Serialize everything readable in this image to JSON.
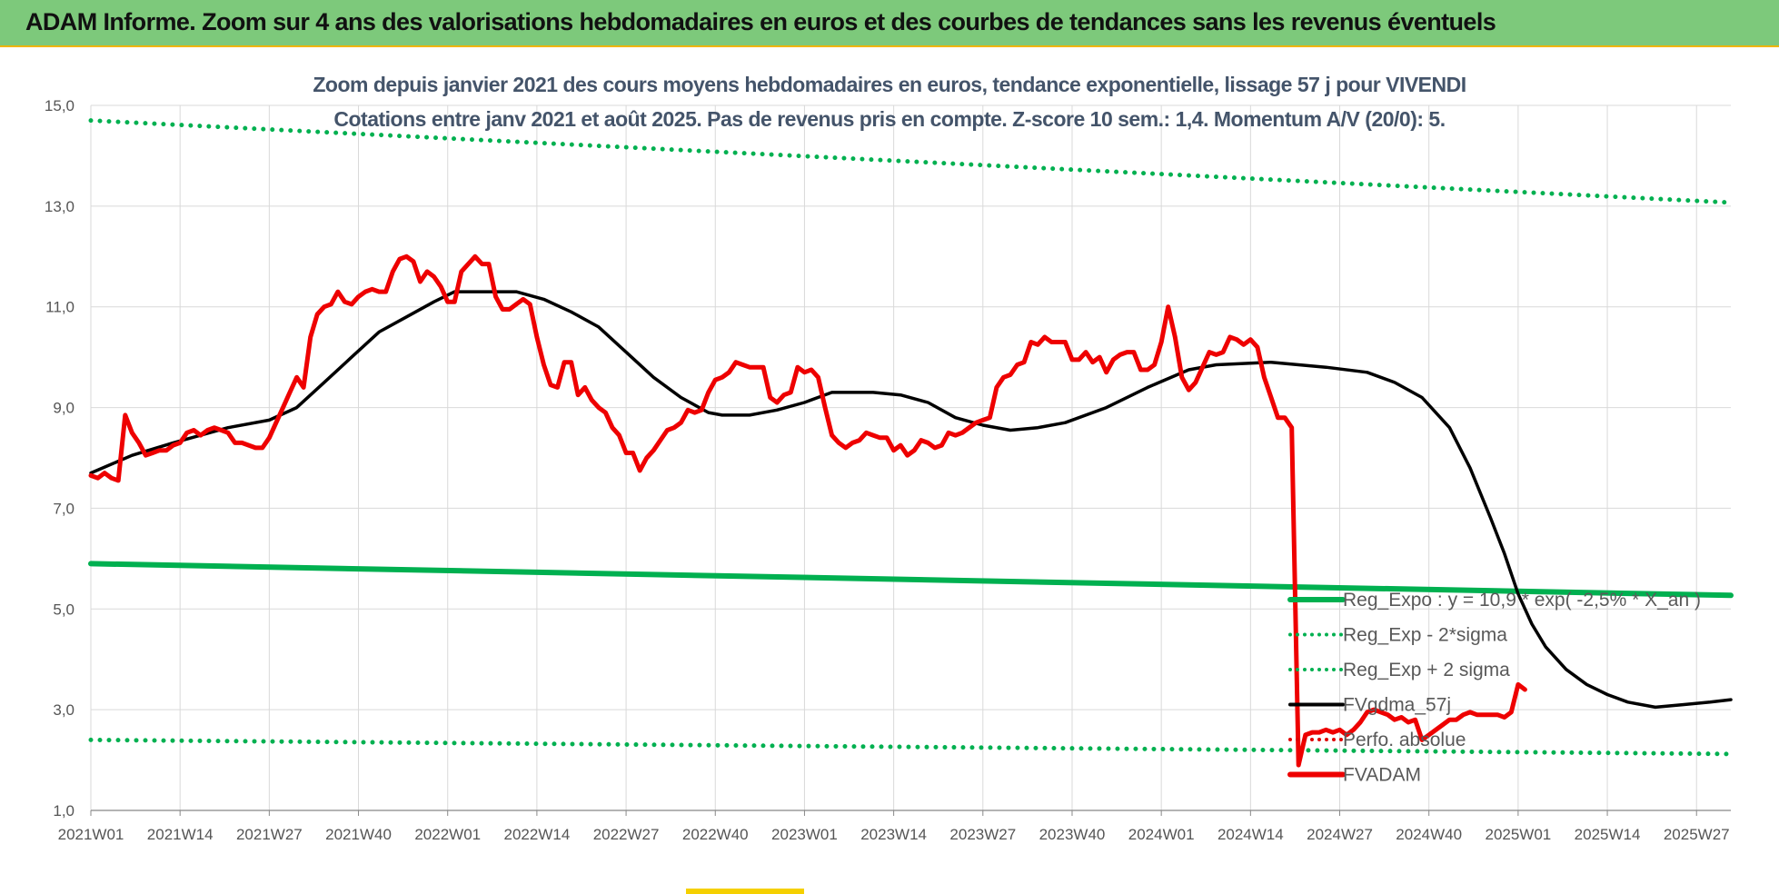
{
  "header": {
    "title": "ADAM Informe. Zoom sur 4 ans des valorisations hebdomadaires en euros et des courbes de tendances sans les revenus éventuels"
  },
  "chart_data": {
    "type": "line",
    "title": "Zoom depuis janvier 2021 des cours moyens hebdomadaires en euros, tendance exponentielle, lissage 57 j pour VIVENDI",
    "subtitle": "Cotations entre janv 2021 et août 2025.  Pas de revenus pris en compte. Z-score 10 sem.: 1,4. Momentum A/V (20/0): 5.",
    "xlabel": "",
    "ylabel": "",
    "ylim": [
      1.0,
      15.0
    ],
    "yticks": [
      "1,0",
      "3,0",
      "5,0",
      "7,0",
      "9,0",
      "11,0",
      "13,0",
      "15,0"
    ],
    "x_range": [
      0,
      239
    ],
    "x_ticks": [
      {
        "label": "2021W01",
        "x": 0
      },
      {
        "label": "2021W14",
        "x": 13
      },
      {
        "label": "2021W27",
        "x": 26
      },
      {
        "label": "2021W40",
        "x": 39
      },
      {
        "label": "2022W01",
        "x": 52
      },
      {
        "label": "2022W14",
        "x": 65
      },
      {
        "label": "2022W27",
        "x": 78
      },
      {
        "label": "2022W40",
        "x": 91
      },
      {
        "label": "2023W01",
        "x": 104
      },
      {
        "label": "2023W14",
        "x": 117
      },
      {
        "label": "2023W27",
        "x": 130
      },
      {
        "label": "2023W40",
        "x": 143
      },
      {
        "label": "2024W01",
        "x": 156
      },
      {
        "label": "2024W14",
        "x": 169
      },
      {
        "label": "2024W27",
        "x": 182
      },
      {
        "label": "2024W40",
        "x": 195
      },
      {
        "label": "2025W01",
        "x": 208
      },
      {
        "label": "2025W14",
        "x": 221
      },
      {
        "label": "2025W27",
        "x": 234
      }
    ],
    "grid": true,
    "legend_position": "bottom-right",
    "series": [
      {
        "name": "Reg_Expo : y = 10,9 * exp( -2,5% * X_an )",
        "color": "#00b050",
        "style": "solid",
        "points": [
          [
            0,
            5.9
          ],
          [
            239,
            5.27
          ]
        ]
      },
      {
        "name": "Reg_Exp - 2*sigma",
        "color": "#00b050",
        "style": "dotted",
        "points": [
          [
            0,
            2.4
          ],
          [
            239,
            2.12
          ]
        ]
      },
      {
        "name": "Reg_Exp + 2 sigma",
        "color": "#00b050",
        "style": "dotted",
        "points": [
          [
            0,
            14.7
          ],
          [
            239,
            13.07
          ]
        ]
      },
      {
        "name": "FVgdma_57j",
        "color": "#000000",
        "style": "solid",
        "points": [
          [
            0,
            7.7
          ],
          [
            6,
            8.05
          ],
          [
            12,
            8.3
          ],
          [
            20,
            8.6
          ],
          [
            26,
            8.75
          ],
          [
            30,
            9.0
          ],
          [
            34,
            9.5
          ],
          [
            38,
            10.0
          ],
          [
            42,
            10.5
          ],
          [
            46,
            10.8
          ],
          [
            50,
            11.1
          ],
          [
            53,
            11.3
          ],
          [
            58,
            11.3
          ],
          [
            62,
            11.3
          ],
          [
            66,
            11.15
          ],
          [
            70,
            10.9
          ],
          [
            74,
            10.6
          ],
          [
            78,
            10.1
          ],
          [
            82,
            9.6
          ],
          [
            86,
            9.2
          ],
          [
            90,
            8.9
          ],
          [
            92,
            8.85
          ],
          [
            96,
            8.85
          ],
          [
            100,
            8.95
          ],
          [
            104,
            9.1
          ],
          [
            108,
            9.3
          ],
          [
            114,
            9.3
          ],
          [
            118,
            9.25
          ],
          [
            122,
            9.1
          ],
          [
            126,
            8.8
          ],
          [
            130,
            8.65
          ],
          [
            134,
            8.55
          ],
          [
            138,
            8.6
          ],
          [
            142,
            8.7
          ],
          [
            148,
            9.0
          ],
          [
            154,
            9.4
          ],
          [
            160,
            9.75
          ],
          [
            164,
            9.85
          ],
          [
            172,
            9.9
          ],
          [
            180,
            9.8
          ],
          [
            186,
            9.7
          ],
          [
            190,
            9.5
          ],
          [
            194,
            9.2
          ],
          [
            198,
            8.6
          ],
          [
            201,
            7.8
          ],
          [
            204,
            6.8
          ],
          [
            206,
            6.1
          ],
          [
            208,
            5.3
          ],
          [
            210,
            4.7
          ],
          [
            212,
            4.25
          ],
          [
            215,
            3.8
          ],
          [
            218,
            3.5
          ],
          [
            221,
            3.3
          ],
          [
            224,
            3.15
          ],
          [
            228,
            3.05
          ],
          [
            232,
            3.1
          ],
          [
            236,
            3.15
          ],
          [
            239,
            3.2
          ]
        ]
      },
      {
        "name": "Perfo. absolue",
        "color": "#e00000",
        "style": "dotted",
        "points": []
      },
      {
        "name": "FVADAM",
        "color": "#ee0000",
        "style": "solid",
        "points": [
          [
            0,
            7.65
          ],
          [
            1,
            7.6
          ],
          [
            2,
            7.7
          ],
          [
            3,
            7.6
          ],
          [
            4,
            7.55
          ],
          [
            5,
            8.85
          ],
          [
            6,
            8.5
          ],
          [
            7,
            8.3
          ],
          [
            8,
            8.05
          ],
          [
            9,
            8.1
          ],
          [
            10,
            8.15
          ],
          [
            11,
            8.15
          ],
          [
            12,
            8.25
          ],
          [
            13,
            8.3
          ],
          [
            14,
            8.5
          ],
          [
            15,
            8.55
          ],
          [
            16,
            8.45
          ],
          [
            17,
            8.55
          ],
          [
            18,
            8.6
          ],
          [
            19,
            8.55
          ],
          [
            20,
            8.5
          ],
          [
            21,
            8.3
          ],
          [
            22,
            8.3
          ],
          [
            23,
            8.25
          ],
          [
            24,
            8.2
          ],
          [
            25,
            8.2
          ],
          [
            26,
            8.4
          ],
          [
            27,
            8.7
          ],
          [
            28,
            9.0
          ],
          [
            29,
            9.3
          ],
          [
            30,
            9.6
          ],
          [
            31,
            9.4
          ],
          [
            32,
            10.4
          ],
          [
            33,
            10.85
          ],
          [
            34,
            11.0
          ],
          [
            35,
            11.05
          ],
          [
            36,
            11.3
          ],
          [
            37,
            11.1
          ],
          [
            38,
            11.05
          ],
          [
            39,
            11.2
          ],
          [
            40,
            11.3
          ],
          [
            41,
            11.35
          ],
          [
            42,
            11.3
          ],
          [
            43,
            11.3
          ],
          [
            44,
            11.7
          ],
          [
            45,
            11.95
          ],
          [
            46,
            12.0
          ],
          [
            47,
            11.9
          ],
          [
            48,
            11.5
          ],
          [
            49,
            11.7
          ],
          [
            50,
            11.6
          ],
          [
            51,
            11.4
          ],
          [
            52,
            11.1
          ],
          [
            53,
            11.1
          ],
          [
            54,
            11.7
          ],
          [
            55,
            11.85
          ],
          [
            56,
            12.0
          ],
          [
            57,
            11.85
          ],
          [
            58,
            11.85
          ],
          [
            59,
            11.2
          ],
          [
            60,
            10.95
          ],
          [
            61,
            10.95
          ],
          [
            62,
            11.05
          ],
          [
            63,
            11.15
          ],
          [
            64,
            11.05
          ],
          [
            65,
            10.4
          ],
          [
            66,
            9.85
          ],
          [
            67,
            9.45
          ],
          [
            68,
            9.4
          ],
          [
            69,
            9.9
          ],
          [
            70,
            9.9
          ],
          [
            71,
            9.25
          ],
          [
            72,
            9.4
          ],
          [
            73,
            9.15
          ],
          [
            74,
            9.0
          ],
          [
            75,
            8.9
          ],
          [
            76,
            8.6
          ],
          [
            77,
            8.45
          ],
          [
            78,
            8.1
          ],
          [
            79,
            8.1
          ],
          [
            80,
            7.75
          ],
          [
            81,
            8.0
          ],
          [
            82,
            8.15
          ],
          [
            83,
            8.35
          ],
          [
            84,
            8.55
          ],
          [
            85,
            8.6
          ],
          [
            86,
            8.7
          ],
          [
            87,
            8.95
          ],
          [
            88,
            8.9
          ],
          [
            89,
            8.95
          ],
          [
            90,
            9.3
          ],
          [
            91,
            9.55
          ],
          [
            92,
            9.6
          ],
          [
            93,
            9.7
          ],
          [
            94,
            9.9
          ],
          [
            95,
            9.85
          ],
          [
            96,
            9.8
          ],
          [
            97,
            9.8
          ],
          [
            98,
            9.8
          ],
          [
            99,
            9.2
          ],
          [
            100,
            9.1
          ],
          [
            101,
            9.25
          ],
          [
            102,
            9.3
          ],
          [
            103,
            9.8
          ],
          [
            104,
            9.7
          ],
          [
            105,
            9.75
          ],
          [
            106,
            9.6
          ],
          [
            107,
            9.0
          ],
          [
            108,
            8.45
          ],
          [
            109,
            8.3
          ],
          [
            110,
            8.2
          ],
          [
            111,
            8.3
          ],
          [
            112,
            8.35
          ],
          [
            113,
            8.5
          ],
          [
            114,
            8.45
          ],
          [
            115,
            8.4
          ],
          [
            116,
            8.4
          ],
          [
            117,
            8.15
          ],
          [
            118,
            8.25
          ],
          [
            119,
            8.05
          ],
          [
            120,
            8.15
          ],
          [
            121,
            8.35
          ],
          [
            122,
            8.3
          ],
          [
            123,
            8.2
          ],
          [
            124,
            8.25
          ],
          [
            125,
            8.5
          ],
          [
            126,
            8.45
          ],
          [
            127,
            8.5
          ],
          [
            128,
            8.6
          ],
          [
            129,
            8.7
          ],
          [
            130,
            8.75
          ],
          [
            131,
            8.8
          ],
          [
            132,
            9.4
          ],
          [
            133,
            9.6
          ],
          [
            134,
            9.65
          ],
          [
            135,
            9.85
          ],
          [
            136,
            9.9
          ],
          [
            137,
            10.3
          ],
          [
            138,
            10.25
          ],
          [
            139,
            10.4
          ],
          [
            140,
            10.3
          ],
          [
            141,
            10.3
          ],
          [
            142,
            10.3
          ],
          [
            143,
            9.95
          ],
          [
            144,
            9.95
          ],
          [
            145,
            10.1
          ],
          [
            146,
            9.9
          ],
          [
            147,
            10.0
          ],
          [
            148,
            9.7
          ],
          [
            149,
            9.95
          ],
          [
            150,
            10.05
          ],
          [
            151,
            10.1
          ],
          [
            152,
            10.1
          ],
          [
            153,
            9.75
          ],
          [
            154,
            9.75
          ],
          [
            155,
            9.85
          ],
          [
            156,
            10.3
          ],
          [
            157,
            11.0
          ],
          [
            158,
            10.4
          ],
          [
            159,
            9.6
          ],
          [
            160,
            9.35
          ],
          [
            161,
            9.5
          ],
          [
            162,
            9.8
          ],
          [
            163,
            10.1
          ],
          [
            164,
            10.05
          ],
          [
            165,
            10.1
          ],
          [
            166,
            10.4
          ],
          [
            167,
            10.35
          ],
          [
            168,
            10.25
          ],
          [
            169,
            10.35
          ],
          [
            170,
            10.2
          ],
          [
            171,
            9.6
          ],
          [
            172,
            9.2
          ],
          [
            173,
            8.8
          ],
          [
            174,
            8.8
          ],
          [
            175,
            8.6
          ],
          [
            176,
            1.9
          ],
          [
            177,
            2.5
          ],
          [
            178,
            2.55
          ],
          [
            179,
            2.55
          ],
          [
            180,
            2.6
          ],
          [
            181,
            2.55
          ],
          [
            182,
            2.6
          ],
          [
            183,
            2.5
          ],
          [
            184,
            2.6
          ],
          [
            185,
            2.75
          ],
          [
            186,
            2.95
          ],
          [
            187,
            3.0
          ],
          [
            188,
            2.95
          ],
          [
            189,
            2.9
          ],
          [
            190,
            2.8
          ],
          [
            191,
            2.85
          ],
          [
            192,
            2.75
          ],
          [
            193,
            2.8
          ],
          [
            194,
            2.4
          ],
          [
            195,
            2.5
          ],
          [
            196,
            2.6
          ],
          [
            197,
            2.7
          ],
          [
            198,
            2.8
          ],
          [
            199,
            2.8
          ],
          [
            200,
            2.9
          ],
          [
            201,
            2.95
          ],
          [
            202,
            2.9
          ],
          [
            203,
            2.9
          ],
          [
            204,
            2.9
          ],
          [
            205,
            2.9
          ],
          [
            206,
            2.85
          ],
          [
            207,
            2.95
          ],
          [
            208,
            3.5
          ],
          [
            209,
            3.4
          ]
        ]
      }
    ]
  }
}
